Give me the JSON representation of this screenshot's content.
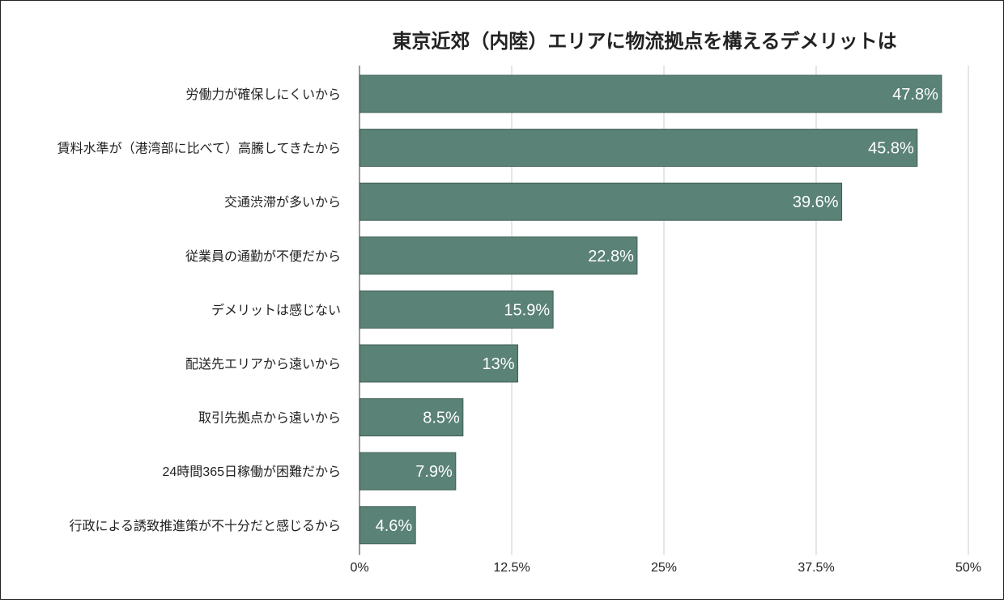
{
  "chart_data": {
    "type": "bar",
    "orientation": "horizontal",
    "title": "東京近郊（内陸）エリアに物流拠点を構えるデメリットは",
    "xlabel": "",
    "ylabel": "",
    "categories": [
      "労働力が確保しにくいから",
      "賃料水準が（港湾部に比べて）高騰してきたから",
      "交通渋滞が多いから",
      "従業員の通勤が不便だから",
      "デメリットは感じない",
      "配送先エリアから遠いから",
      "取引先拠点から遠いから",
      "24時間365日稼働が困難だから",
      "行政による誘致推進策が不十分だと感じるから"
    ],
    "values": [
      47.8,
      45.8,
      39.6,
      22.8,
      15.9,
      13,
      8.5,
      7.9,
      4.6
    ],
    "value_labels": [
      "47.8%",
      "45.8%",
      "39.6%",
      "22.8%",
      "15.9%",
      "13%",
      "8.5%",
      "7.9%",
      "4.6%"
    ],
    "xlim": [
      0,
      50
    ],
    "x_ticks": [
      0,
      12.5,
      25,
      37.5,
      50
    ],
    "x_tick_labels": [
      "0%",
      "12.5%",
      "25%",
      "37.5%",
      "50%"
    ],
    "grid": "vertical",
    "legend": "none",
    "bar_color": "#5a8277"
  }
}
